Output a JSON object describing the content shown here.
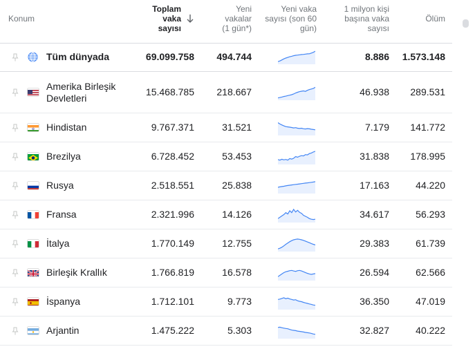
{
  "header": {
    "location": "Konum",
    "total_cases": [
      "Toplam",
      "vaka",
      "sayısı"
    ],
    "new_cases": [
      "Yeni",
      "vakalar",
      "(1 gün*)"
    ],
    "new_cases_60": [
      "Yeni vaka",
      "sayısı (son 60",
      "gün)"
    ],
    "per_million": [
      "1 milyon kişi",
      "başına vaka",
      "sayısı"
    ],
    "deaths": "Ölüm",
    "sort_icon": "arrow-down-icon"
  },
  "world": {
    "name": "Tüm dünyada",
    "total": "69.099.758",
    "new": "494.744",
    "per_million": "8.886",
    "deaths": "1.573.148",
    "icon": "globe-icon",
    "trend": [
      0.15,
      0.2,
      0.28,
      0.36,
      0.42,
      0.47,
      0.52,
      0.56,
      0.6,
      0.63,
      0.65,
      0.67,
      0.69,
      0.7,
      0.72,
      0.74,
      0.75,
      0.8,
      0.86,
      0.94
    ]
  },
  "rows": [
    {
      "name": [
        "Amerika Birleşik",
        "Devletleri"
      ],
      "flag": "us",
      "total": "15.468.785",
      "new": "218.667",
      "per_million": "46.938",
      "deaths": "289.531",
      "trend": [
        0.12,
        0.15,
        0.19,
        0.23,
        0.26,
        0.3,
        0.33,
        0.37,
        0.42,
        0.5,
        0.55,
        0.6,
        0.63,
        0.66,
        0.62,
        0.7,
        0.76,
        0.8,
        0.84,
        0.93
      ]
    },
    {
      "name": [
        "Hindistan"
      ],
      "flag": "in",
      "total": "9.767.371",
      "new": "31.521",
      "per_million": "7.179",
      "deaths": "141.772",
      "trend": [
        0.92,
        0.82,
        0.75,
        0.68,
        0.62,
        0.6,
        0.58,
        0.55,
        0.52,
        0.54,
        0.5,
        0.48,
        0.5,
        0.46,
        0.44,
        0.47,
        0.45,
        0.42,
        0.4,
        0.38
      ]
    },
    {
      "name": [
        "Brezilya"
      ],
      "flag": "br",
      "total": "6.728.452",
      "new": "53.453",
      "per_million": "31.838",
      "deaths": "178.995",
      "trend": [
        0.32,
        0.28,
        0.35,
        0.3,
        0.33,
        0.28,
        0.4,
        0.36,
        0.42,
        0.55,
        0.5,
        0.58,
        0.62,
        0.6,
        0.7,
        0.68,
        0.78,
        0.82,
        0.9,
        0.95
      ]
    },
    {
      "name": [
        "Rusya"
      ],
      "flag": "ru",
      "total": "2.518.551",
      "new": "25.838",
      "per_million": "17.163",
      "deaths": "44.220",
      "trend": [
        0.42,
        0.45,
        0.48,
        0.5,
        0.53,
        0.56,
        0.58,
        0.6,
        0.62,
        0.64,
        0.66,
        0.68,
        0.7,
        0.72,
        0.74,
        0.76,
        0.78,
        0.8,
        0.82,
        0.85
      ]
    },
    {
      "name": [
        "Fransa"
      ],
      "flag": "fr",
      "total": "2.321.996",
      "new": "14.126",
      "per_million": "34.617",
      "deaths": "56.293",
      "trend": [
        0.25,
        0.35,
        0.45,
        0.55,
        0.7,
        0.6,
        0.85,
        0.7,
        0.95,
        0.75,
        0.88,
        0.72,
        0.65,
        0.5,
        0.42,
        0.35,
        0.25,
        0.2,
        0.18,
        0.2
      ]
    },
    {
      "name": [
        "İtalya"
      ],
      "flag": "it",
      "total": "1.770.149",
      "new": "12.755",
      "per_million": "29.383",
      "deaths": "61.739",
      "trend": [
        0.15,
        0.2,
        0.28,
        0.38,
        0.5,
        0.6,
        0.7,
        0.78,
        0.84,
        0.88,
        0.9,
        0.88,
        0.84,
        0.8,
        0.74,
        0.68,
        0.62,
        0.56,
        0.5,
        0.45
      ]
    },
    {
      "name": [
        "Birleşik Krallık"
      ],
      "flag": "gb",
      "total": "1.766.819",
      "new": "16.578",
      "per_million": "26.594",
      "deaths": "62.566",
      "trend": [
        0.25,
        0.35,
        0.45,
        0.55,
        0.62,
        0.66,
        0.7,
        0.72,
        0.68,
        0.65,
        0.7,
        0.72,
        0.68,
        0.62,
        0.56,
        0.5,
        0.45,
        0.42,
        0.45,
        0.48
      ]
    },
    {
      "name": [
        "İspanya"
      ],
      "flag": "es",
      "total": "1.712.101",
      "new": "9.773",
      "per_million": "36.350",
      "deaths": "47.019",
      "trend": [
        0.72,
        0.75,
        0.8,
        0.85,
        0.78,
        0.82,
        0.76,
        0.72,
        0.68,
        0.7,
        0.62,
        0.58,
        0.55,
        0.5,
        0.46,
        0.42,
        0.38,
        0.35,
        0.3,
        0.28
      ]
    },
    {
      "name": [
        "Arjantin"
      ],
      "flag": "ar",
      "total": "1.475.222",
      "new": "5.303",
      "per_million": "32.827",
      "deaths": "40.222",
      "trend": [
        0.8,
        0.82,
        0.78,
        0.75,
        0.72,
        0.7,
        0.65,
        0.6,
        0.58,
        0.56,
        0.52,
        0.5,
        0.48,
        0.45,
        0.42,
        0.4,
        0.38,
        0.35,
        0.3,
        0.28
      ]
    }
  ],
  "colors": {
    "accent": "#4285f4",
    "area": "#e8f0fe",
    "divider": "#e8eaed"
  }
}
